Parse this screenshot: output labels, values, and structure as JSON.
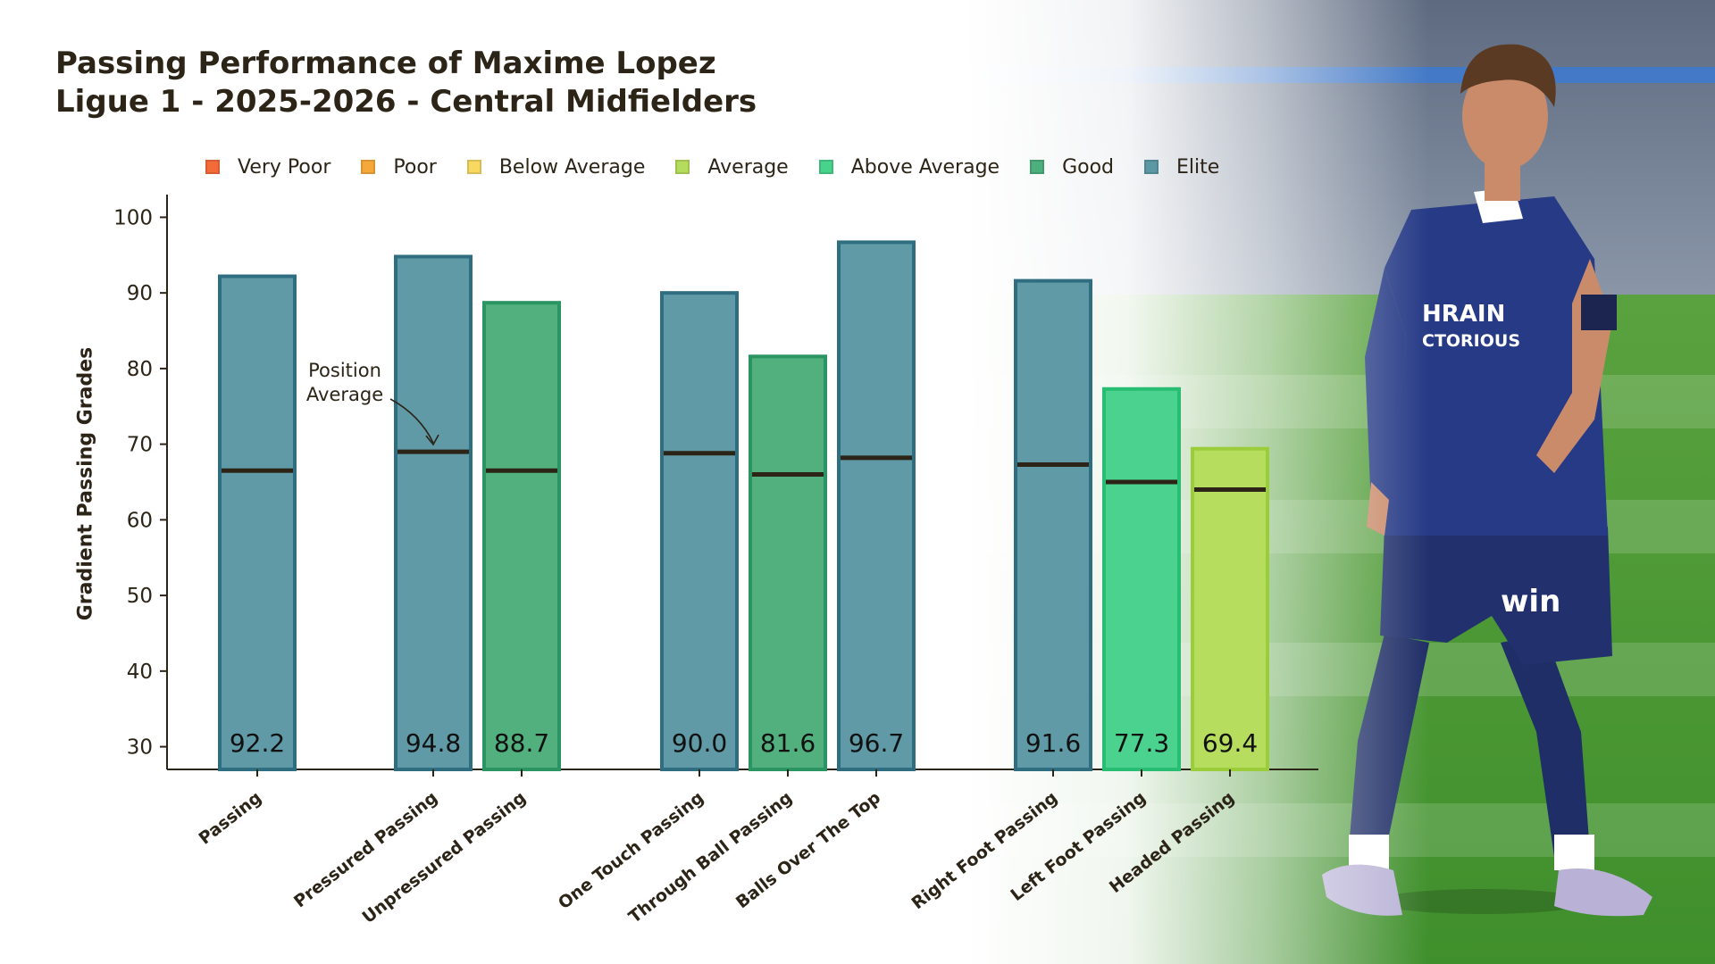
{
  "title_line1": "Passing Performance of Maxime Lopez",
  "title_line2": "Ligue 1 - 2025-2026 - Central Midfielders",
  "legend": [
    {
      "label": "Very Poor",
      "color": "#f26b38"
    },
    {
      "label": "Poor",
      "color": "#f5a93b"
    },
    {
      "label": "Below Average",
      "color": "#f7d860"
    },
    {
      "label": "Average",
      "color": "#b5dc5c"
    },
    {
      "label": "Above Average",
      "color": "#47d38c"
    },
    {
      "label": "Good",
      "color": "#4caf7d"
    },
    {
      "label": "Elite",
      "color": "#5b98a4"
    }
  ],
  "annotation": {
    "line1": "Position",
    "line2": "Average"
  },
  "chart_data": {
    "type": "bar",
    "title": "Passing Performance of Maxime Lopez - Ligue 1 - 2025-2026 - Central Midfielders",
    "xlabel": "",
    "ylabel": "Gradient Passing Grades",
    "ylim": [
      27,
      103
    ],
    "yticks": [
      30,
      40,
      50,
      60,
      70,
      80,
      90,
      100
    ],
    "grid": false,
    "categories": [
      "Passing",
      "Pressured Passing",
      "Unpressured Passing",
      "One Touch Passing",
      "Through Ball Passing",
      "Balls Over The Top",
      "Right Foot Passing",
      "Left Foot Passing",
      "Headed Passing"
    ],
    "values": [
      92.2,
      94.8,
      88.7,
      90.0,
      81.6,
      96.7,
      91.6,
      77.3,
      69.4
    ],
    "value_labels": [
      "92.2",
      "94.8",
      "88.7",
      "90.0",
      "81.6",
      "96.7",
      "91.6",
      "77.3",
      "69.4"
    ],
    "position_average": [
      66.5,
      69.0,
      66.5,
      68.8,
      66.0,
      68.2,
      67.3,
      65.0,
      64.0
    ],
    "grades": [
      "Elite",
      "Elite",
      "Good",
      "Elite",
      "Good",
      "Elite",
      "Elite",
      "Above Average",
      "Average"
    ],
    "grade_colors": {
      "Elite": {
        "fill": "#5f9aa6",
        "edge": "#2e6e80"
      },
      "Good": {
        "fill": "#52b07f",
        "edge": "#2a9463"
      },
      "Above Average": {
        "fill": "#4ad28e",
        "edge": "#27bd73"
      },
      "Average": {
        "fill": "#b6dd5e",
        "edge": "#9bcc3a"
      }
    }
  }
}
